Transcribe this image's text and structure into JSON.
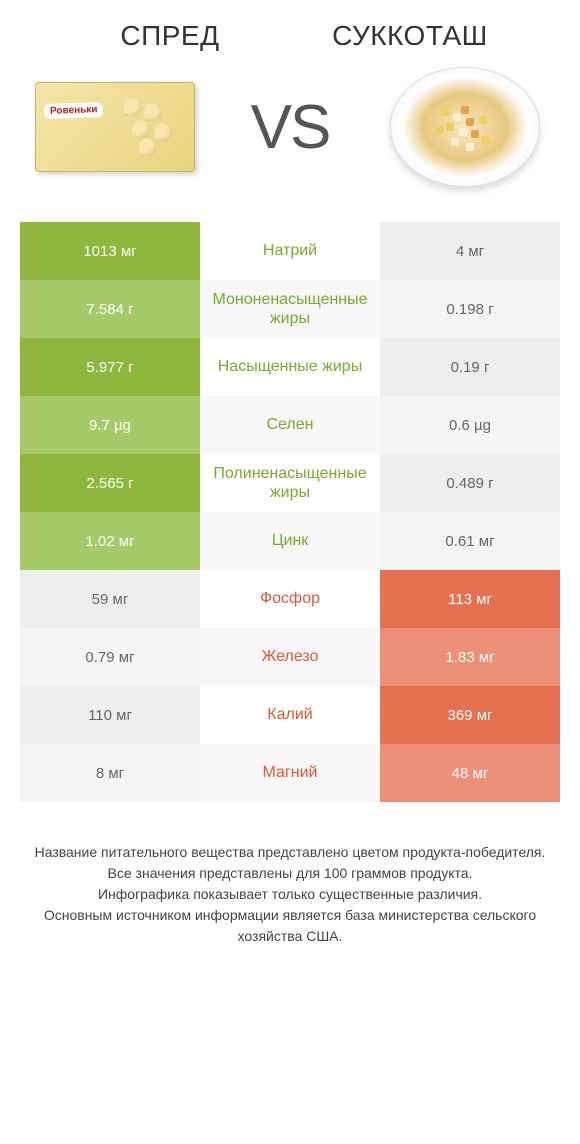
{
  "header": {
    "left_title": "СПРЕД",
    "right_title": "СУККОТАШ",
    "vs": "VS"
  },
  "colors": {
    "green": "#8fb73e",
    "green_dim": "#a6c96a",
    "orange": "#e57150",
    "orange_dim": "#ec9077",
    "grey": "#eeeeee",
    "mid_green": "#7da82f",
    "mid_orange": "#d85a38",
    "bg": "#ffffff"
  },
  "rows": [
    {
      "left": "1013 мг",
      "mid": "Натрий",
      "right": "4 мг",
      "winner": "left"
    },
    {
      "left": "7.584 г",
      "mid": "Мононенасыщенные жиры",
      "right": "0.198 г",
      "winner": "left"
    },
    {
      "left": "5.977 г",
      "mid": "Насыщенные жиры",
      "right": "0.19 г",
      "winner": "left"
    },
    {
      "left": "9.7 µg",
      "mid": "Селен",
      "right": "0.6 µg",
      "winner": "left"
    },
    {
      "left": "2.565 г",
      "mid": "Полиненасыщенные жиры",
      "right": "0.489 г",
      "winner": "left"
    },
    {
      "left": "1.02 мг",
      "mid": "Цинк",
      "right": "0.61 мг",
      "winner": "left"
    },
    {
      "left": "59 мг",
      "mid": "Фосфор",
      "right": "113 мг",
      "winner": "right"
    },
    {
      "left": "0.79 мг",
      "mid": "Железо",
      "right": "1.83 мг",
      "winner": "right"
    },
    {
      "left": "110 мг",
      "mid": "Калий",
      "right": "369 мг",
      "winner": "right"
    },
    {
      "left": "8 мг",
      "mid": "Магний",
      "right": "48 мг",
      "winner": "right"
    }
  ],
  "footer": {
    "line1": "Название питательного вещества представлено цветом продукта-победителя.",
    "line2": "Все значения представлены для 100 граммов продукта.",
    "line3": "Инфографика показывает только существенные различия.",
    "line4": "Основным источником информации является база министерства сельского хозяйства США."
  }
}
